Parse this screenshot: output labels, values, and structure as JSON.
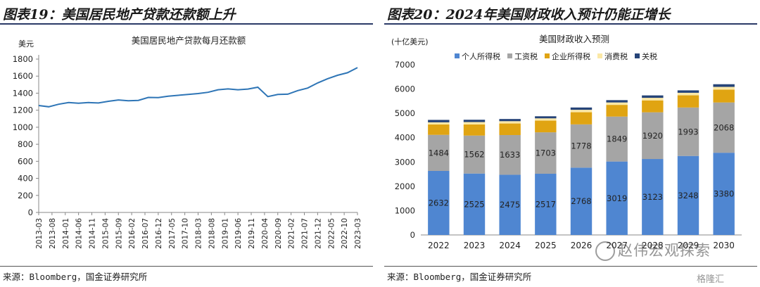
{
  "left": {
    "figure_title": "图表19：美国居民地产贷款还款额上升",
    "source": "来源：Bloomberg，国金证券研究所"
  },
  "right": {
    "figure_title": "图表20：2024年美国财政收入预计仍能正增长",
    "source": "来源：Bloomberg，国金证券研究所"
  },
  "watermark": "赵伟宏观探索",
  "watermark2": "格隆汇",
  "chart_data": [
    {
      "type": "line",
      "title": "美国居民地产贷款每月还款额",
      "ylabel": "美元",
      "ylim": [
        0,
        1800
      ],
      "yticks": [
        0,
        200,
        400,
        600,
        800,
        1000,
        1200,
        1400,
        1600,
        1800
      ],
      "x_tick_labels": [
        "2013-03",
        "2013-08",
        "2014-01",
        "2014-06",
        "2014-11",
        "2015-04",
        "2015-09",
        "2016-02",
        "2016-07",
        "2016-12",
        "2017-05",
        "2017-10",
        "2018-03",
        "2018-08",
        "2019-01",
        "2019-06",
        "2019-11",
        "2020-04",
        "2020-09",
        "2021-02",
        "2021-07",
        "2021-12",
        "2022-05",
        "2022-10",
        "2023-03"
      ],
      "series": [
        {
          "color": "#2e75b6",
          "values": [
            1255,
            1240,
            1270,
            1290,
            1282,
            1290,
            1285,
            1305,
            1320,
            1310,
            1315,
            1350,
            1348,
            1365,
            1375,
            1385,
            1395,
            1410,
            1440,
            1450,
            1440,
            1448,
            1470,
            1360,
            1385,
            1388,
            1430,
            1460,
            1520,
            1570,
            1610,
            1640,
            1700
          ]
        }
      ],
      "grid": false
    },
    {
      "type": "bar",
      "stacked": true,
      "title": "美国财政收入预测",
      "ylabel": "(十亿美元)",
      "ylim": [
        0,
        7000
      ],
      "yticks": [
        0,
        1000,
        2000,
        3000,
        4000,
        5000,
        6000,
        7000
      ],
      "legend_position": "top",
      "categories": [
        "2022",
        "2023",
        "2024",
        "2025",
        "2026",
        "2027",
        "2028",
        "2029",
        "2030"
      ],
      "series": [
        {
          "name": "个人所得税",
          "color": "#4f86d1",
          "values": [
            2632,
            2525,
            2475,
            2517,
            2768,
            3019,
            3123,
            3248,
            3380
          ]
        },
        {
          "name": "工资税",
          "color": "#a5a5a5",
          "values": [
            1484,
            1562,
            1633,
            1703,
            1778,
            1849,
            1920,
            1993,
            2068
          ]
        },
        {
          "name": "企业所得税",
          "color": "#e0a412",
          "values": [
            425,
            455,
            475,
            480,
            500,
            480,
            490,
            500,
            530
          ]
        },
        {
          "name": "消费税",
          "color": "#fbe8a6",
          "values": [
            90,
            100,
            95,
            95,
            100,
            100,
            105,
            105,
            110
          ]
        },
        {
          "name": "关税",
          "color": "#264478",
          "values": [
            100,
            95,
            90,
            85,
            95,
            95,
            100,
            100,
            110
          ]
        }
      ]
    }
  ]
}
